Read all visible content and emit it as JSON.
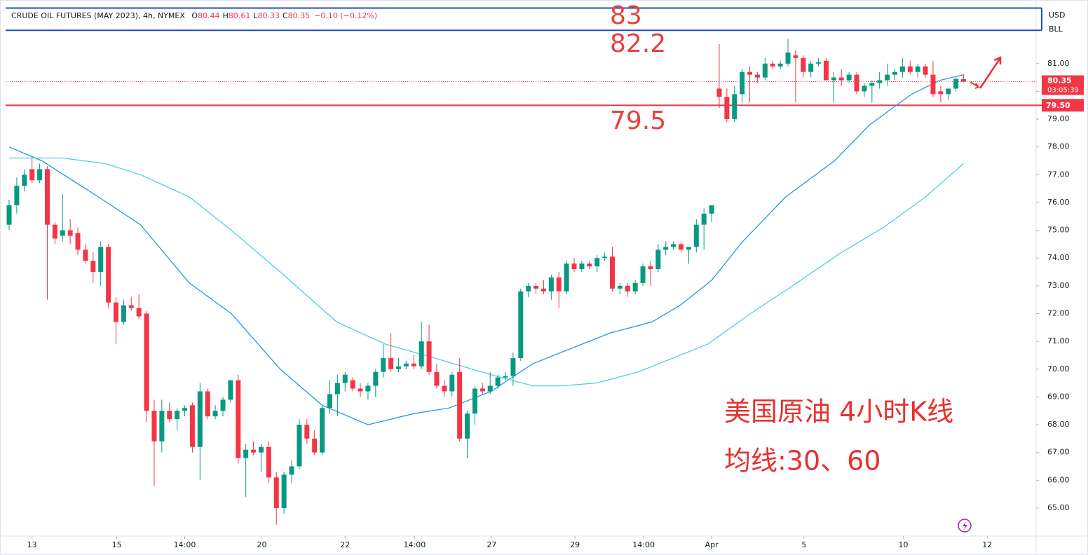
{
  "chart_data": {
    "type": "candlestick",
    "legend": {
      "title": "CRUDE OIL FUTURES (MAY 2023), 4h, NYMEX",
      "items": [
        {
          "key": "O",
          "value": "80.44"
        },
        {
          "key": "H",
          "value": "80.61"
        },
        {
          "key": "L",
          "value": "80.33"
        },
        {
          "key": "C",
          "value": "80.35"
        }
      ],
      "change": "−0.10 (−0.12%)"
    },
    "up_color": "#089981",
    "down_color": "#f23645",
    "values": [
      [
        75.2,
        76.1,
        75.0,
        75.9
      ],
      [
        75.9,
        76.9,
        75.6,
        76.6
      ],
      [
        76.6,
        77.2,
        76.4,
        77.0
      ],
      [
        77.2,
        77.6,
        76.7,
        76.8
      ],
      [
        76.8,
        77.4,
        76.7,
        77.2
      ],
      [
        77.2,
        77.3,
        72.5,
        75.2
      ],
      [
        75.2,
        75.3,
        74.5,
        74.7
      ],
      [
        74.8,
        76.3,
        74.6,
        75.0
      ],
      [
        75.0,
        75.4,
        74.5,
        74.8
      ],
      [
        74.9,
        75.1,
        74.1,
        74.3
      ],
      [
        74.3,
        74.5,
        73.8,
        73.9
      ],
      [
        73.9,
        74.2,
        73.1,
        73.5
      ],
      [
        73.5,
        74.6,
        73.0,
        74.4
      ],
      [
        74.4,
        74.5,
        72.2,
        72.4
      ],
      [
        72.4,
        72.6,
        70.9,
        71.7
      ],
      [
        71.7,
        72.5,
        71.6,
        72.3
      ],
      [
        72.3,
        72.6,
        72.1,
        72.2
      ],
      [
        72.2,
        72.7,
        71.8,
        71.9
      ],
      [
        72.0,
        72.1,
        68.1,
        68.5
      ],
      [
        68.5,
        68.9,
        65.8,
        67.4
      ],
      [
        67.4,
        68.9,
        67.0,
        68.5
      ],
      [
        68.5,
        68.8,
        68.1,
        68.2
      ],
      [
        68.2,
        68.6,
        67.8,
        68.5
      ],
      [
        68.5,
        68.7,
        68.3,
        68.6
      ],
      [
        68.7,
        68.8,
        67.0,
        67.2
      ],
      [
        67.2,
        69.5,
        66.0,
        69.2
      ],
      [
        69.2,
        69.3,
        68.2,
        68.3
      ],
      [
        68.3,
        68.7,
        68.2,
        68.5
      ],
      [
        68.5,
        69.0,
        68.3,
        68.9
      ],
      [
        68.9,
        69.6,
        68.8,
        69.6
      ],
      [
        69.6,
        69.8,
        66.6,
        66.8
      ],
      [
        66.8,
        67.3,
        65.4,
        67.1
      ],
      [
        67.1,
        67.4,
        66.9,
        67.0
      ],
      [
        67.0,
        67.3,
        66.3,
        67.2
      ],
      [
        67.2,
        67.4,
        65.9,
        66.1
      ],
      [
        66.1,
        66.3,
        64.4,
        65.0
      ],
      [
        65.0,
        66.3,
        64.8,
        66.2
      ],
      [
        66.2,
        66.7,
        65.9,
        66.5
      ],
      [
        66.5,
        68.2,
        66.4,
        68.0
      ],
      [
        68.0,
        68.2,
        67.3,
        67.5
      ],
      [
        67.5,
        67.8,
        66.9,
        67.0
      ],
      [
        67.0,
        68.7,
        66.9,
        68.6
      ],
      [
        68.6,
        69.6,
        68.4,
        69.1
      ],
      [
        69.1,
        69.8,
        68.3,
        69.5
      ],
      [
        69.5,
        69.9,
        69.2,
        69.8
      ],
      [
        69.6,
        69.7,
        69.2,
        69.3
      ],
      [
        69.3,
        69.5,
        69.0,
        69.2
      ],
      [
        69.2,
        69.5,
        68.9,
        69.4
      ],
      [
        69.4,
        70.0,
        69.0,
        69.9
      ],
      [
        69.9,
        70.9,
        69.7,
        70.4
      ],
      [
        70.4,
        71.3,
        69.9,
        70.0
      ],
      [
        70.0,
        70.4,
        69.9,
        70.1
      ],
      [
        70.1,
        70.3,
        70.0,
        70.2
      ],
      [
        70.2,
        70.5,
        70.0,
        70.1
      ],
      [
        70.1,
        71.7,
        70.0,
        71.0
      ],
      [
        71.0,
        71.6,
        69.8,
        69.9
      ],
      [
        69.9,
        70.2,
        69.3,
        69.4
      ],
      [
        69.4,
        69.6,
        69.0,
        69.2
      ],
      [
        69.2,
        69.9,
        69.0,
        69.8
      ],
      [
        69.9,
        70.4,
        67.4,
        67.5
      ],
      [
        67.5,
        68.5,
        66.8,
        68.4
      ],
      [
        68.4,
        69.4,
        68.0,
        69.3
      ],
      [
        69.3,
        69.5,
        69.1,
        69.2
      ],
      [
        69.2,
        69.9,
        69.1,
        69.4
      ],
      [
        69.4,
        69.8,
        69.3,
        69.7
      ],
      [
        69.7,
        69.9,
        69.6,
        69.75
      ],
      [
        69.75,
        70.6,
        69.4,
        70.4
      ],
      [
        70.4,
        72.9,
        70.3,
        72.8
      ],
      [
        72.8,
        73.1,
        72.6,
        73.0
      ],
      [
        73.0,
        73.1,
        72.7,
        72.9
      ],
      [
        72.9,
        73.2,
        72.7,
        72.8
      ],
      [
        72.8,
        73.4,
        72.5,
        73.3
      ],
      [
        73.3,
        73.5,
        72.2,
        72.8
      ],
      [
        72.8,
        73.9,
        72.7,
        73.8
      ],
      [
        73.8,
        74.0,
        73.5,
        73.6
      ],
      [
        73.6,
        73.9,
        73.5,
        73.8
      ],
      [
        73.8,
        73.9,
        73.6,
        73.7
      ],
      [
        73.7,
        74.1,
        73.5,
        74.0
      ],
      [
        74.0,
        74.2,
        73.9,
        74.05
      ],
      [
        74.05,
        74.4,
        72.8,
        72.9
      ],
      [
        72.9,
        73.1,
        72.7,
        73.0
      ],
      [
        73.0,
        73.1,
        72.6,
        72.8
      ],
      [
        72.8,
        73.2,
        72.7,
        73.1
      ],
      [
        73.1,
        73.8,
        73.0,
        73.7
      ],
      [
        73.7,
        73.9,
        73.0,
        73.6
      ],
      [
        73.6,
        74.5,
        73.5,
        74.3
      ],
      [
        74.3,
        74.6,
        74.1,
        74.4
      ],
      [
        74.4,
        74.6,
        74.3,
        74.5
      ],
      [
        74.5,
        74.6,
        74.2,
        74.3
      ],
      [
        74.3,
        74.4,
        73.8,
        74.4
      ],
      [
        74.4,
        75.4,
        74.2,
        75.2
      ],
      [
        75.2,
        75.8,
        74.3,
        75.6
      ],
      [
        75.6,
        75.8,
        75.3,
        75.9
      ],
      [
        80.1,
        81.7,
        79.4,
        79.8
      ],
      [
        79.8,
        80.1,
        78.9,
        79.0
      ],
      [
        79.0,
        80.2,
        78.9,
        79.9
      ],
      [
        79.9,
        80.8,
        79.6,
        80.7
      ],
      [
        80.7,
        80.9,
        79.6,
        80.6
      ],
      [
        80.6,
        80.7,
        80.3,
        80.5
      ],
      [
        80.5,
        81.2,
        80.4,
        81.0
      ],
      [
        81.0,
        81.1,
        80.8,
        80.9
      ],
      [
        80.9,
        81.1,
        80.8,
        81.0
      ],
      [
        81.0,
        81.9,
        80.9,
        81.4
      ],
      [
        81.3,
        81.5,
        79.6,
        81.2
      ],
      [
        81.2,
        81.3,
        80.5,
        80.7
      ],
      [
        80.7,
        81.1,
        80.5,
        81.0
      ],
      [
        81.0,
        81.2,
        80.9,
        81.05
      ],
      [
        81.1,
        81.2,
        80.4,
        80.4
      ],
      [
        80.4,
        80.7,
        79.6,
        80.5
      ],
      [
        80.5,
        80.8,
        80.2,
        80.4
      ],
      [
        80.4,
        80.7,
        80.3,
        80.6
      ],
      [
        80.6,
        80.7,
        79.9,
        80.0
      ],
      [
        80.0,
        80.3,
        79.8,
        80.2
      ],
      [
        80.2,
        80.4,
        79.6,
        80.3
      ],
      [
        80.3,
        80.7,
        80.1,
        80.4
      ],
      [
        80.4,
        81.0,
        80.2,
        80.6
      ],
      [
        80.6,
        80.8,
        80.4,
        80.7
      ],
      [
        80.7,
        81.2,
        80.5,
        80.9
      ],
      [
        80.9,
        81.1,
        80.6,
        80.7
      ],
      [
        80.7,
        81.0,
        80.5,
        80.9
      ],
      [
        80.9,
        81.0,
        80.5,
        80.6
      ],
      [
        80.6,
        81.1,
        79.8,
        79.9
      ],
      [
        80.0,
        80.2,
        79.6,
        79.9
      ],
      [
        79.9,
        80.1,
        79.7,
        80.1
      ],
      [
        80.1,
        80.5,
        80.0,
        80.45
      ],
      [
        80.44,
        80.61,
        80.33,
        80.35
      ]
    ],
    "moving_averages": [
      {
        "color": "#2196f3",
        "x": [
          0,
          4.3,
          11.7,
          17.2,
          23.6,
          29.1,
          35.5,
          41,
          47,
          53,
          57.6,
          63.1,
          68.6,
          74.1,
          78.7,
          84.2,
          87.9,
          92,
          96.1,
          101.7,
          108.1,
          112.7,
          118.2,
          121.9,
          125
        ],
        "values": [
          78.0,
          77.5,
          76.2,
          75.2,
          73.1,
          72.0,
          70.0,
          68.7,
          68.0,
          68.4,
          68.6,
          69.2,
          70.2,
          70.8,
          71.3,
          71.7,
          72.3,
          73.2,
          74.6,
          76.2,
          77.5,
          78.8,
          79.9,
          80.4,
          80.6
        ]
      },
      {
        "color": "#4dd0e1",
        "x": [
          0,
          7,
          12.6,
          17.2,
          23.6,
          29.1,
          35.5,
          42.9,
          49.3,
          55.7,
          63.1,
          68.6,
          72.3,
          76.9,
          82.4,
          91.5,
          97.1,
          102.6,
          109,
          114.5,
          120,
          125
        ],
        "values": [
          77.6,
          77.6,
          77.4,
          77.0,
          76.2,
          75.0,
          73.5,
          71.7,
          70.9,
          70.4,
          69.8,
          69.4,
          69.4,
          69.5,
          69.9,
          70.9,
          72.0,
          73.0,
          74.2,
          75.1,
          76.2,
          77.4
        ]
      }
    ],
    "xlim": [
      -0.46,
      134.5
    ],
    "xticks": [
      {
        "value": 3.0,
        "label": "13"
      },
      {
        "value": 14.1,
        "label": "15"
      },
      {
        "value": 23.0,
        "label": "14:00"
      },
      {
        "value": 33.1,
        "label": "20"
      },
      {
        "value": 44.0,
        "label": "22"
      },
      {
        "value": 53.1,
        "label": "14:00"
      },
      {
        "value": 63.2,
        "label": "27"
      },
      {
        "value": 74.1,
        "label": "29"
      },
      {
        "value": 83.1,
        "label": "14:00"
      },
      {
        "value": 92.0,
        "label": "Apr"
      },
      {
        "value": 104.1,
        "label": "5"
      },
      {
        "value": 117.1,
        "label": "10"
      },
      {
        "value": 128.1,
        "label": "12"
      }
    ],
    "ylim": [
      63.99,
      83.29
    ],
    "yticks": [
      {
        "value": 65,
        "label": "65.00"
      },
      {
        "value": 66,
        "label": "66.00"
      },
      {
        "value": 67,
        "label": "67.00"
      },
      {
        "value": 68,
        "label": "68.00"
      },
      {
        "value": 69,
        "label": "69.00"
      },
      {
        "value": 70,
        "label": "70.00"
      },
      {
        "value": 71,
        "label": "71.00"
      },
      {
        "value": 72,
        "label": "72.00"
      },
      {
        "value": 73,
        "label": "73.00"
      },
      {
        "value": 74,
        "label": "74.00"
      },
      {
        "value": 75,
        "label": "75.00"
      },
      {
        "value": 76,
        "label": "76.00"
      },
      {
        "value": 77,
        "label": "77.00"
      },
      {
        "value": 78,
        "label": "78.00"
      },
      {
        "value": 79,
        "label": "79.00"
      },
      {
        "value": 80,
        "label": "80.00"
      },
      {
        "value": 81,
        "label": "81.00"
      }
    ],
    "unit_labels": [
      "USD",
      "BLL"
    ],
    "levels": [
      {
        "value": 83,
        "color": "#1e4fc6"
      },
      {
        "value": 82.2,
        "color": "#1e4fc6"
      },
      {
        "value": 79.5,
        "color": "#f23645",
        "tag": "79.50"
      }
    ],
    "last_price": {
      "value": 80.35,
      "label": "80.35",
      "countdown": "03:05:39",
      "color": "#f23645"
    },
    "annotations": [
      "83",
      "82.2",
      "79.5"
    ],
    "notes": [
      "美国原油 4小时K线",
      "均线:30、60"
    ]
  }
}
